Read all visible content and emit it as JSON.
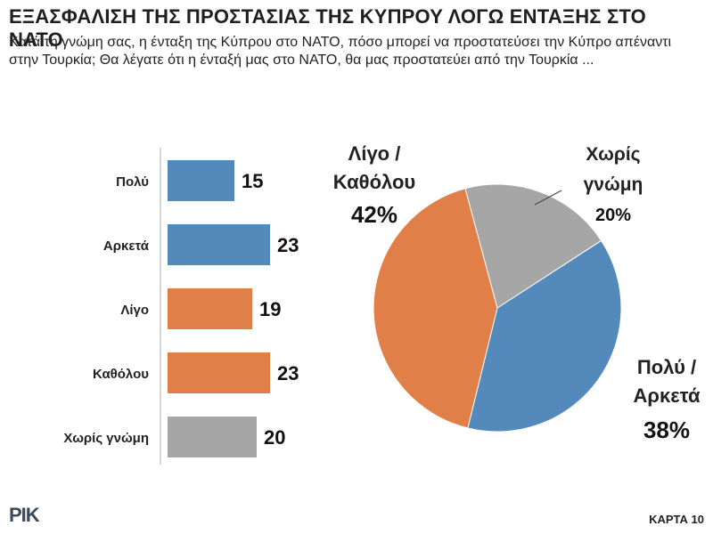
{
  "title": "ΕΞΑΣΦΑΛΙΣΗ ΤΗΣ ΠΡΟΣΤΑΣΙΑΣ ΤΗΣ ΚΥΠΡΟΥ ΛΟΓΩ ΕΝΤΑΞΗΣ ΣΤΟ ΝΑΤΟ",
  "subtitle": "Κατά τη γνώμη σας, η ένταξη της Κύπρου στο ΝΑΤΟ, πόσο μπορεί να προστατεύσει την Κύπρο απέναντι στην Τουρκία; Θα λέγατε ότι η ένταξή μας στο ΝΑΤΟ, θα μας προστατεύει από την Τουρκία ...",
  "logo": "ΡΙΚ",
  "card_label": "ΚΑΡΤΑ 10",
  "colors": {
    "blue": "#5489bb",
    "orange": "#e07f48",
    "gray": "#a6a6a6"
  },
  "chart_data": [
    {
      "type": "bar",
      "orientation": "horizontal",
      "categories": [
        "Πολύ",
        "Αρκετά",
        "Λίγο",
        "Καθόλου",
        "Χωρίς γνώμη"
      ],
      "values": [
        15,
        23,
        19,
        23,
        20
      ],
      "colors": [
        "#5489bb",
        "#5489bb",
        "#e07f48",
        "#e07f48",
        "#a6a6a6"
      ],
      "xlim": [
        0,
        25
      ]
    },
    {
      "type": "pie",
      "slices": [
        {
          "label_line1": "Πολύ /",
          "label_line2": "Αρκετά",
          "value": 38,
          "value_label": "38%",
          "color": "#5489bb"
        },
        {
          "label_line1": "Λίγο /",
          "label_line2": "Καθόλου",
          "value": 42,
          "value_label": "42%",
          "color": "#e07f48"
        },
        {
          "label_line1": "Χωρίς",
          "label_line2": "γνώμη",
          "value": 20,
          "value_label": "20%",
          "color": "#a6a6a6"
        }
      ]
    }
  ]
}
